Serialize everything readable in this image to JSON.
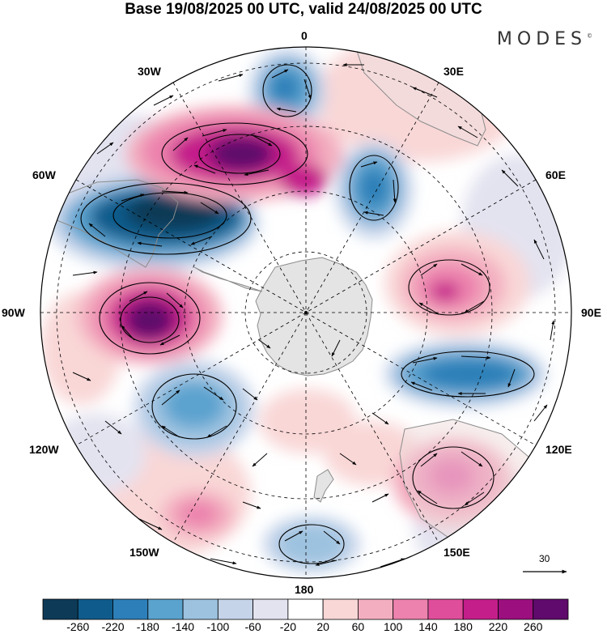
{
  "title": "Base 19/08/2025 00 UTC, valid 24/08/2025 00 UTC",
  "logo": "MODES",
  "logo_mark": "©",
  "meridian_labels": {
    "m0": "0",
    "m30e": "30E",
    "m60e": "60E",
    "m90e": "90E",
    "m120e": "120E",
    "m150e": "150E",
    "m180": "180",
    "m150w": "150W",
    "m120w": "120W",
    "m90w": "90W",
    "m60w": "60W",
    "m30w": "30W"
  },
  "reference_vector": {
    "label": "30"
  },
  "colorbar": {
    "ticks": [
      "-260",
      "-220",
      "-180",
      "-140",
      "-100",
      "-60",
      "-20",
      "20",
      "60",
      "100",
      "140",
      "180",
      "220",
      "260"
    ],
    "colors": [
      "#0d3a57",
      "#0f5c8c",
      "#2c7fb8",
      "#5ba3cf",
      "#9cc2e0",
      "#c6d4ea",
      "#e3e3f0",
      "#ffffff",
      "#f9d7d7",
      "#f3afc0",
      "#ec82ad",
      "#df4e9b",
      "#c41e8a",
      "#9b0f7e",
      "#5f0a6c"
    ]
  },
  "colors": {
    "land": "#e4e4e4",
    "coast": "#8c8c8c",
    "grid": "#000000"
  }
}
